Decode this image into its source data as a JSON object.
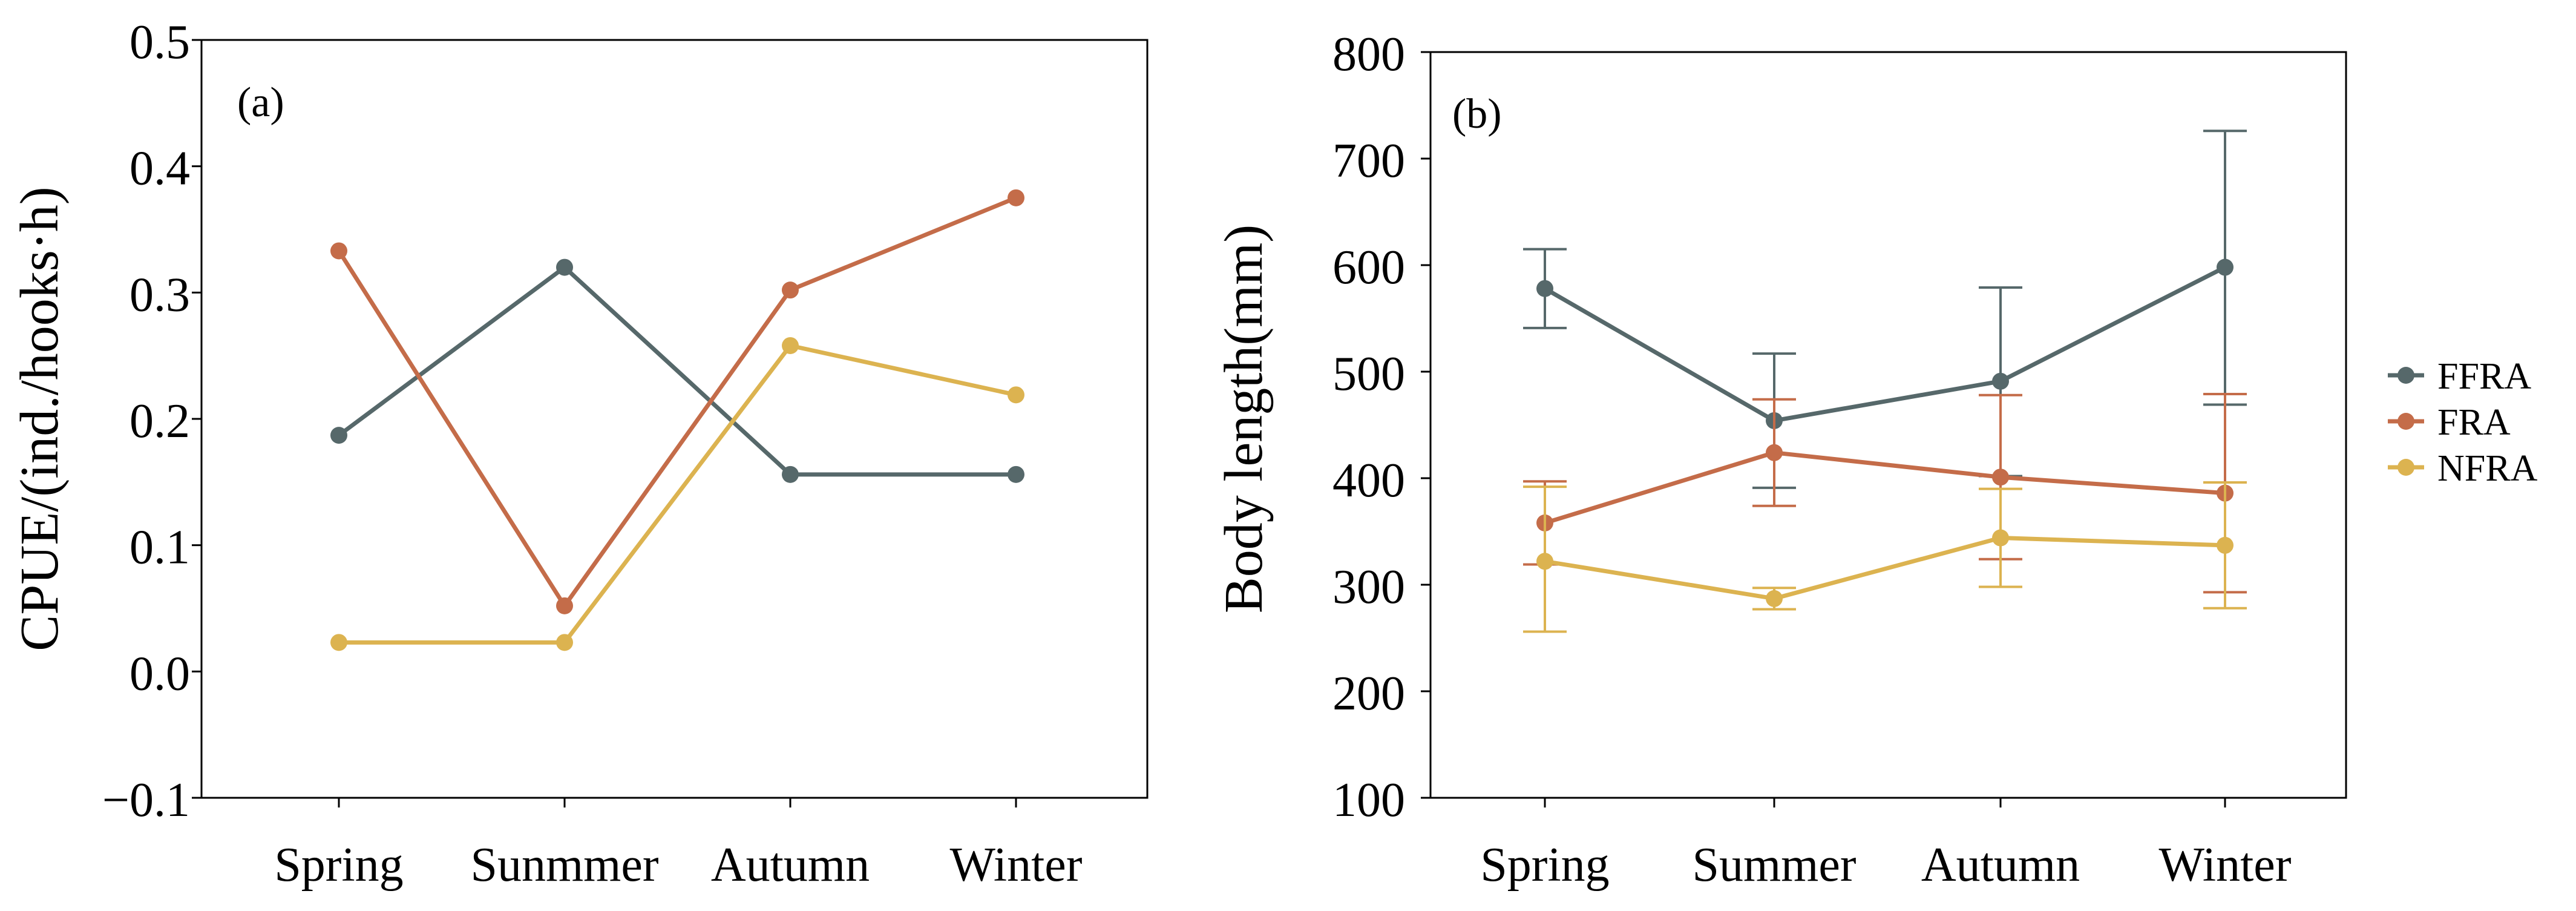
{
  "colors": {
    "FFRA": "#56686a",
    "FRA": "#c46c49",
    "NFRA": "#dcb350",
    "axis": "#000000"
  },
  "legend": [
    "FFRA",
    "FRA",
    "NFRA"
  ],
  "chart_data": [
    {
      "type": "line",
      "panel_label": "(a)",
      "ylabel": "CPUE/(ind./hooks·h)",
      "categories": [
        "Spring",
        "Sunmmer",
        "Autumn",
        "Winter"
      ],
      "ylim": [
        -0.1,
        0.5
      ],
      "yticks": [
        -0.1,
        0.0,
        0.1,
        0.2,
        0.3,
        0.4,
        0.5
      ],
      "ytick_labels": [
        "−0.1",
        "0.0",
        "0.1",
        "0.2",
        "0.3",
        "0.4",
        "0.5"
      ],
      "series": [
        {
          "name": "FFRA",
          "values": [
            0.187,
            0.32,
            0.156,
            0.156
          ]
        },
        {
          "name": "FRA",
          "values": [
            0.333,
            0.052,
            0.302,
            0.375
          ]
        },
        {
          "name": "NFRA",
          "values": [
            0.023,
            0.023,
            0.258,
            0.219
          ]
        }
      ]
    },
    {
      "type": "line",
      "panel_label": "(b)",
      "ylabel": "Body length(mm)",
      "categories": [
        "Spring",
        "Summer",
        "Autumn",
        "Winter"
      ],
      "ylim": [
        100,
        800
      ],
      "yticks": [
        100,
        200,
        300,
        400,
        500,
        600,
        700,
        800
      ],
      "ytick_labels": [
        "100",
        "200",
        "300",
        "400",
        "500",
        "600",
        "700",
        "800"
      ],
      "series": [
        {
          "name": "FFRA",
          "values": [
            578,
            454,
            491,
            598
          ],
          "err_low": [
            541,
            391,
            402,
            469
          ],
          "err_high": [
            615,
            517,
            579,
            726
          ]
        },
        {
          "name": "FRA",
          "values": [
            358,
            424,
            401,
            386
          ],
          "err_low": [
            319,
            374,
            324,
            293
          ],
          "err_high": [
            397,
            474,
            478,
            479
          ]
        },
        {
          "name": "NFRA",
          "values": [
            322,
            287,
            344,
            337
          ],
          "err_low": [
            256,
            277,
            298,
            278
          ],
          "err_high": [
            392,
            297,
            390,
            396
          ]
        }
      ]
    }
  ]
}
